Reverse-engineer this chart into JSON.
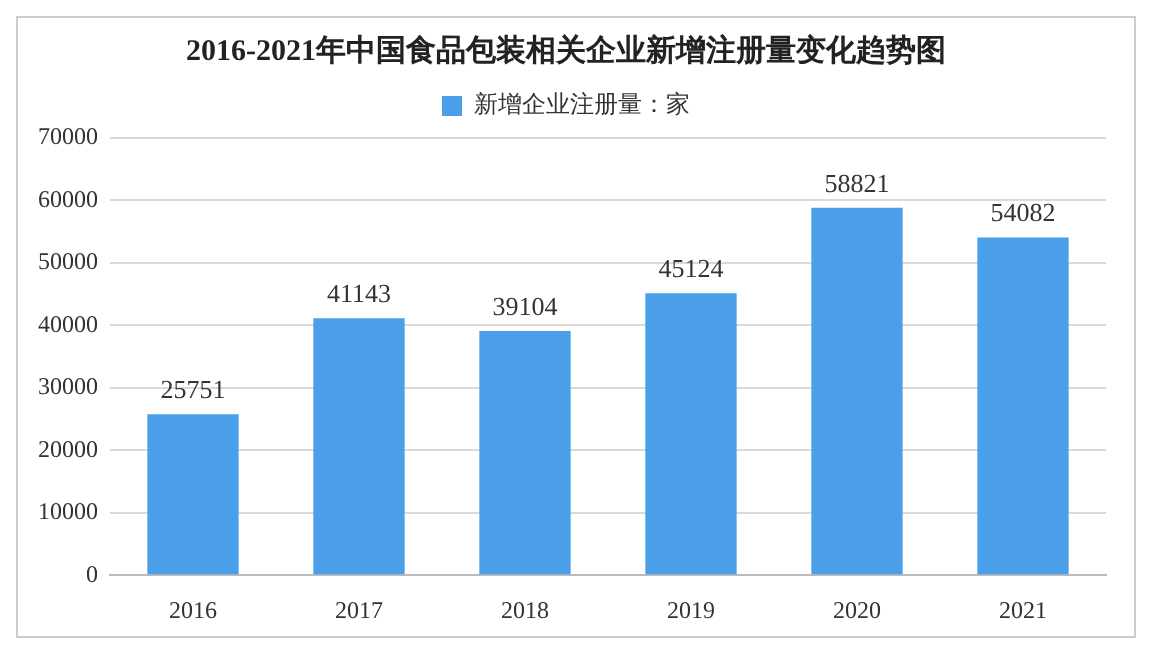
{
  "chart_data": {
    "type": "bar",
    "title": "2016-2021年中国食品包装相关企业新增注册量变化趋势图",
    "categories": [
      "2016",
      "2017",
      "2018",
      "2019",
      "2020",
      "2021"
    ],
    "series": [
      {
        "name": "新增企业注册量：家",
        "color": "#4a9fe8",
        "values": [
          25751,
          41143,
          39104,
          45124,
          58821,
          54082
        ]
      }
    ],
    "ylim": [
      0,
      70000
    ],
    "yticks": [
      0,
      10000,
      20000,
      30000,
      40000,
      50000,
      60000,
      70000
    ],
    "grid": "y",
    "legend": "top",
    "data_labels": true
  }
}
